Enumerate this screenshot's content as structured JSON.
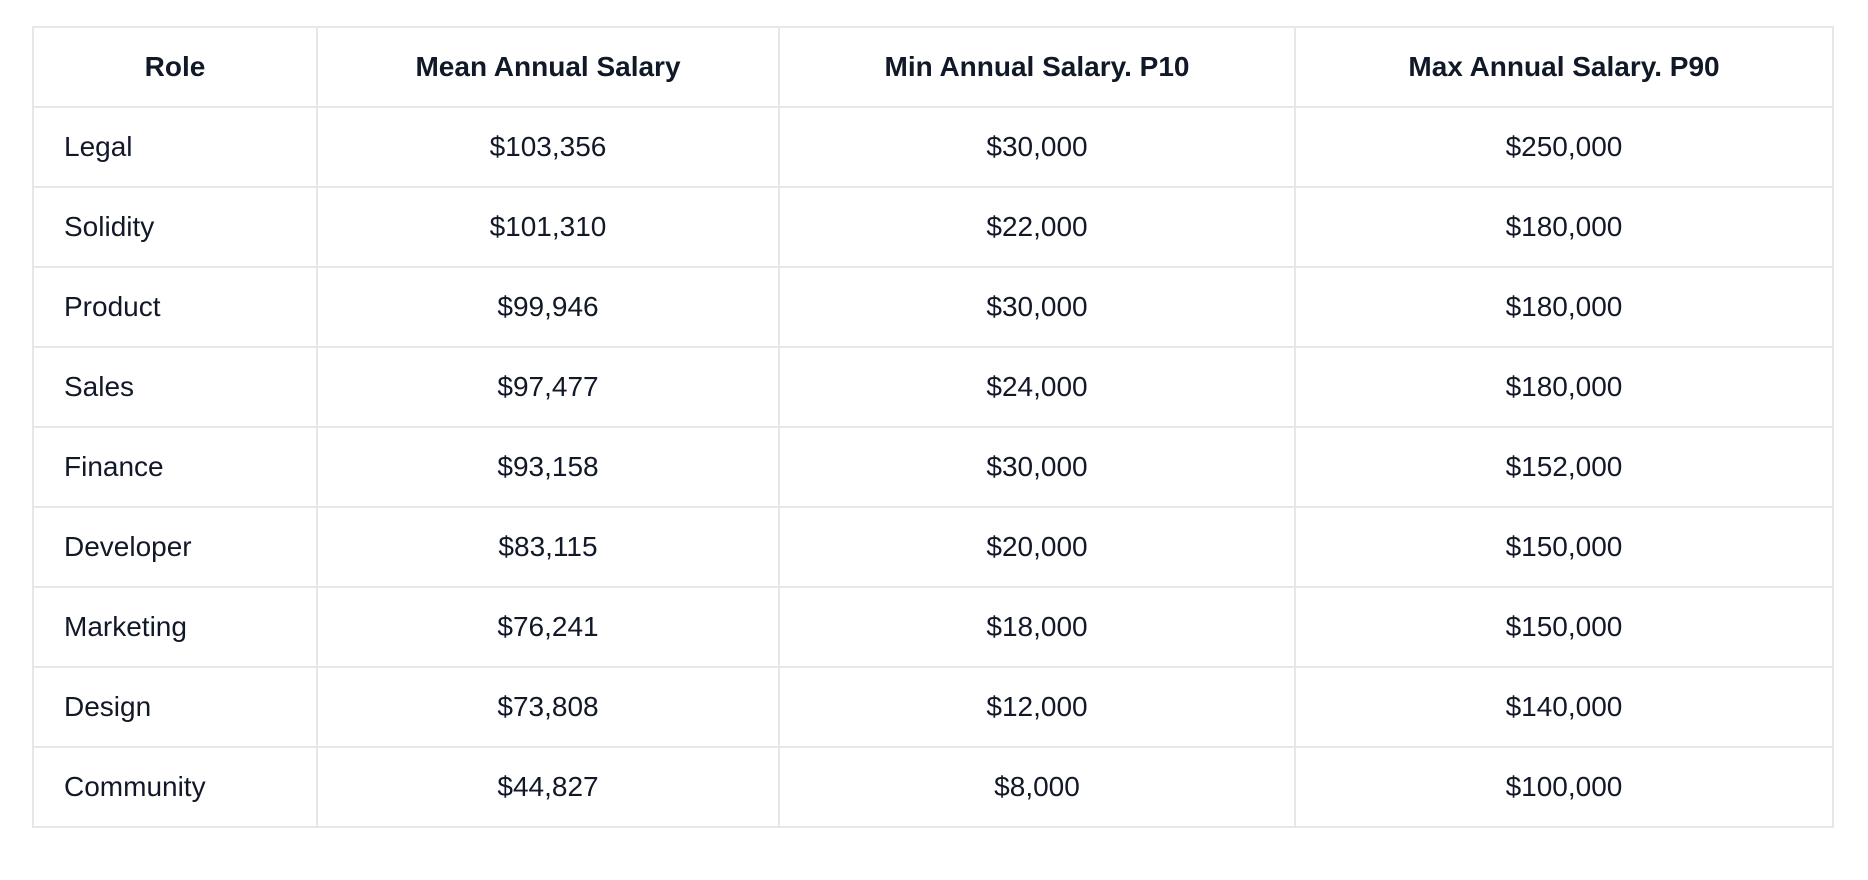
{
  "page": {
    "background_color": "#ffffff",
    "text_color": "#111827",
    "border_color": "#e5e7eb"
  },
  "table": {
    "columns": [
      "Role",
      "Mean Annual Salary",
      "Min Annual Salary. P10",
      "Max Annual Salary. P90"
    ],
    "rows": [
      {
        "role": "Legal",
        "mean": "$103,356",
        "min": "$30,000",
        "max": "$250,000"
      },
      {
        "role": "Solidity",
        "mean": "$101,310",
        "min": "$22,000",
        "max": "$180,000"
      },
      {
        "role": "Product",
        "mean": "$99,946",
        "min": "$30,000",
        "max": "$180,000"
      },
      {
        "role": "Sales",
        "mean": "$97,477",
        "min": "$24,000",
        "max": "$180,000"
      },
      {
        "role": "Finance",
        "mean": "$93,158",
        "min": "$30,000",
        "max": "$152,000"
      },
      {
        "role": "Developer",
        "mean": "$83,115",
        "min": "$20,000",
        "max": "$150,000"
      },
      {
        "role": "Marketing",
        "mean": "$76,241",
        "min": "$18,000",
        "max": "$150,000"
      },
      {
        "role": "Design",
        "mean": "$73,808",
        "min": "$12,000",
        "max": "$140,000"
      },
      {
        "role": "Community",
        "mean": "$44,827",
        "min": "$8,000",
        "max": "$100,000"
      }
    ]
  },
  "chart_data": {
    "type": "table",
    "title": "",
    "columns": [
      "Role",
      "Mean Annual Salary",
      "Min Annual Salary. P10",
      "Max Annual Salary. P90"
    ],
    "rows": [
      [
        "Legal",
        103356,
        30000,
        250000
      ],
      [
        "Solidity",
        101310,
        22000,
        180000
      ],
      [
        "Product",
        99946,
        30000,
        180000
      ],
      [
        "Sales",
        97477,
        24000,
        180000
      ],
      [
        "Finance",
        93158,
        30000,
        152000
      ],
      [
        "Developer",
        83115,
        20000,
        150000
      ],
      [
        "Marketing",
        76241,
        18000,
        150000
      ],
      [
        "Design",
        73808,
        12000,
        140000
      ],
      [
        "Community",
        44827,
        8000,
        100000
      ]
    ],
    "currency": "USD",
    "value_format": "$#,###"
  }
}
